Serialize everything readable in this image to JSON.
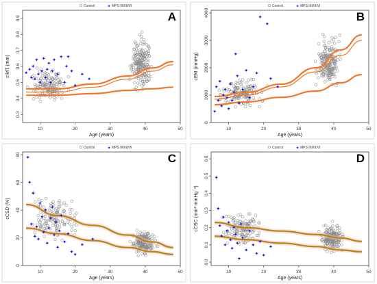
{
  "colors": {
    "control": "#8a8a8a",
    "mps": "#1a1ae6",
    "curve_top": "#f07828",
    "curve_bottom": "#b8860b",
    "band_bottom": "#f2c0d0",
    "panel_border": "#d8d8d8"
  },
  "chart_data": [
    {
      "panel": "A",
      "type": "scatter",
      "xlabel": "Age (years)",
      "ylabel": "cIMT (mm)",
      "xlim": [
        5,
        50
      ],
      "ylim": [
        0.25,
        0.95
      ],
      "xticks": [
        10,
        20,
        30,
        40,
        50
      ],
      "yticks": [
        0.3,
        0.4,
        0.5,
        0.6,
        0.7,
        0.8,
        0.9
      ],
      "legend": [
        "Control",
        "MPS I/II/III/VI"
      ],
      "control_clusters": [
        {
          "x": [
            5.5,
            19
          ],
          "y": [
            0.33,
            0.63
          ]
        },
        {
          "x": [
            35,
            43
          ],
          "y": [
            0.37,
            0.86
          ]
        }
      ],
      "mps_points": [
        [
          6,
          0.56
        ],
        [
          7,
          0.58
        ],
        [
          7.5,
          0.53
        ],
        [
          8,
          0.6
        ],
        [
          8.5,
          0.52
        ],
        [
          9,
          0.64
        ],
        [
          9.5,
          0.55
        ],
        [
          10,
          0.5
        ],
        [
          10.5,
          0.57
        ],
        [
          11,
          0.65
        ],
        [
          11.5,
          0.53
        ],
        [
          12,
          0.58
        ],
        [
          12.5,
          0.62
        ],
        [
          13,
          0.5
        ],
        [
          13.5,
          0.57
        ],
        [
          14,
          0.64
        ],
        [
          15,
          0.55
        ],
        [
          16,
          0.66
        ],
        [
          17,
          0.5
        ],
        [
          17.5,
          0.6
        ],
        [
          18,
          0.66
        ],
        [
          19,
          0.57
        ],
        [
          20,
          0.48
        ],
        [
          22,
          0.55
        ],
        [
          24,
          0.52
        ]
      ],
      "series": [
        {
          "name": "",
          "curve": "top",
          "x": [
            6,
            15,
            25,
            35,
            42,
            48
          ],
          "y": [
            0.46,
            0.46,
            0.49,
            0.54,
            0.59,
            0.63
          ]
        },
        {
          "name": "",
          "curve": "top_band",
          "x": [
            6,
            15,
            25,
            35,
            42,
            48
          ],
          "y": [
            0.44,
            0.44,
            0.47,
            0.52,
            0.57,
            0.61
          ]
        },
        {
          "name": "",
          "curve": "bottom",
          "x": [
            6,
            15,
            25,
            35,
            42,
            48
          ],
          "y": [
            0.42,
            0.42,
            0.43,
            0.45,
            0.46,
            0.47
          ]
        }
      ]
    },
    {
      "panel": "B",
      "type": "scatter",
      "xlabel": "Age (years)",
      "ylabel": "cEM (mmHg)",
      "xlim": [
        5,
        50
      ],
      "ylim": [
        0,
        4100
      ],
      "xticks": [
        10,
        20,
        30,
        40,
        50
      ],
      "yticks": [
        0,
        1000,
        2000,
        3000,
        4000
      ],
      "legend": [
        "Control",
        "MPS I/II/III/VI"
      ],
      "control_clusters": [
        {
          "x": [
            6,
            22
          ],
          "y": [
            300,
            1900
          ]
        },
        {
          "x": [
            34,
            43
          ],
          "y": [
            800,
            3600
          ]
        }
      ],
      "mps_points": [
        [
          6,
          400
        ],
        [
          6.5,
          1300
        ],
        [
          7,
          800
        ],
        [
          7.5,
          1500
        ],
        [
          8,
          600
        ],
        [
          8.5,
          1000
        ],
        [
          9,
          1200
        ],
        [
          9.5,
          900
        ],
        [
          10,
          500
        ],
        [
          10.5,
          1400
        ],
        [
          11,
          800
        ],
        [
          11.5,
          1100
        ],
        [
          12,
          2500
        ],
        [
          12.5,
          1700
        ],
        [
          13,
          700
        ],
        [
          14,
          1200
        ],
        [
          15,
          1900
        ],
        [
          16,
          900
        ],
        [
          17,
          1300
        ],
        [
          18,
          1800
        ],
        [
          19,
          3850
        ],
        [
          21,
          3600
        ],
        [
          22,
          1600
        ],
        [
          24,
          1300
        ]
      ],
      "series": [
        {
          "name": "",
          "curve": "top",
          "x": [
            6,
            15,
            25,
            35,
            42,
            48
          ],
          "y": [
            950,
            1100,
            1400,
            2000,
            2650,
            3200
          ]
        },
        {
          "name": "",
          "curve": "top_band",
          "x": [
            6,
            15,
            25,
            35,
            42,
            48
          ],
          "y": [
            850,
            1000,
            1300,
            1850,
            2450,
            3000
          ]
        },
        {
          "name": "",
          "curve": "bottom",
          "x": [
            6,
            15,
            25,
            35,
            42,
            48
          ],
          "y": [
            650,
            750,
            920,
            1150,
            1450,
            1750
          ]
        }
      ]
    },
    {
      "panel": "C",
      "type": "scatter",
      "xlabel": "Age (years)",
      "ylabel": "cCSD (%)",
      "xlim": [
        5,
        50
      ],
      "ylim": [
        0,
        82
      ],
      "xticks": [
        10,
        20,
        30,
        40,
        50
      ],
      "yticks": [
        0,
        20,
        40,
        60,
        80
      ],
      "legend": [
        "Control",
        "MPS I/II/III/VI"
      ],
      "control_clusters": [
        {
          "x": [
            6,
            22
          ],
          "y": [
            12,
            58
          ]
        },
        {
          "x": [
            35,
            44
          ],
          "y": [
            4,
            30
          ]
        }
      ],
      "mps_points": [
        [
          6.5,
          78
        ],
        [
          7,
          60
        ],
        [
          7.5,
          30
        ],
        [
          8,
          52
        ],
        [
          8.5,
          21
        ],
        [
          9,
          28
        ],
        [
          9.5,
          19
        ],
        [
          10,
          45
        ],
        [
          10.5,
          35
        ],
        [
          11,
          24
        ],
        [
          11.5,
          40
        ],
        [
          12,
          16
        ],
        [
          12.5,
          27
        ],
        [
          13,
          34
        ],
        [
          13.5,
          42
        ],
        [
          14,
          22
        ],
        [
          14.5,
          31
        ],
        [
          15,
          13
        ],
        [
          15.5,
          25
        ],
        [
          16,
          36
        ],
        [
          17,
          17
        ],
        [
          18,
          23
        ],
        [
          19,
          10
        ],
        [
          20,
          8
        ],
        [
          22,
          15
        ],
        [
          25,
          19
        ]
      ],
      "series": [
        {
          "name": "",
          "curve": "top",
          "x": [
            6,
            15,
            25,
            35,
            42,
            48
          ],
          "y": [
            44,
            36,
            29,
            22,
            17,
            13
          ]
        },
        {
          "name": "",
          "curve": "bottom",
          "x": [
            6,
            15,
            25,
            35,
            42,
            48
          ],
          "y": [
            27,
            23,
            18,
            13,
            10,
            8
          ]
        }
      ]
    },
    {
      "panel": "D",
      "type": "scatter",
      "xlabel": "Age (years)",
      "ylabel": "cCSC (mm² mmHg⁻¹)",
      "xlim": [
        5,
        50
      ],
      "ylim": [
        -0.02,
        0.64
      ],
      "xticks": [
        10,
        20,
        30,
        40,
        50
      ],
      "yticks": [
        0.0,
        0.1,
        0.2,
        0.3,
        0.4,
        0.5,
        0.6
      ],
      "legend": [
        "Control",
        "MPS I/II/III/VI"
      ],
      "control_clusters": [
        {
          "x": [
            6,
            22
          ],
          "y": [
            0.06,
            0.33
          ]
        },
        {
          "x": [
            35,
            44
          ],
          "y": [
            0.03,
            0.25
          ]
        }
      ],
      "mps_points": [
        [
          6.5,
          0.49
        ],
        [
          7,
          0.31
        ],
        [
          7.5,
          0.21
        ],
        [
          8,
          0.15
        ],
        [
          8.5,
          0.26
        ],
        [
          9,
          0.1
        ],
        [
          9.5,
          0.18
        ],
        [
          10,
          0.23
        ],
        [
          10.5,
          0.13
        ],
        [
          11,
          0.08
        ],
        [
          11.5,
          0.2
        ],
        [
          12,
          0.16
        ],
        [
          12.5,
          0.11
        ],
        [
          13,
          0.02
        ],
        [
          13.5,
          0.22
        ],
        [
          14,
          0.14
        ],
        [
          15,
          0.07
        ],
        [
          16,
          0.18
        ],
        [
          17,
          0.1
        ],
        [
          18,
          0.05
        ],
        [
          19,
          0.12
        ],
        [
          20,
          0.04
        ],
        [
          22,
          0.09
        ]
      ],
      "series": [
        {
          "name": "",
          "curve": "top",
          "x": [
            6,
            15,
            25,
            35,
            42,
            48
          ],
          "y": [
            0.23,
            0.2,
            0.18,
            0.16,
            0.14,
            0.12
          ]
        },
        {
          "name": "",
          "curve": "bottom",
          "x": [
            6,
            15,
            25,
            35,
            42,
            48
          ],
          "y": [
            0.15,
            0.13,
            0.11,
            0.09,
            0.07,
            0.06
          ]
        }
      ]
    }
  ]
}
